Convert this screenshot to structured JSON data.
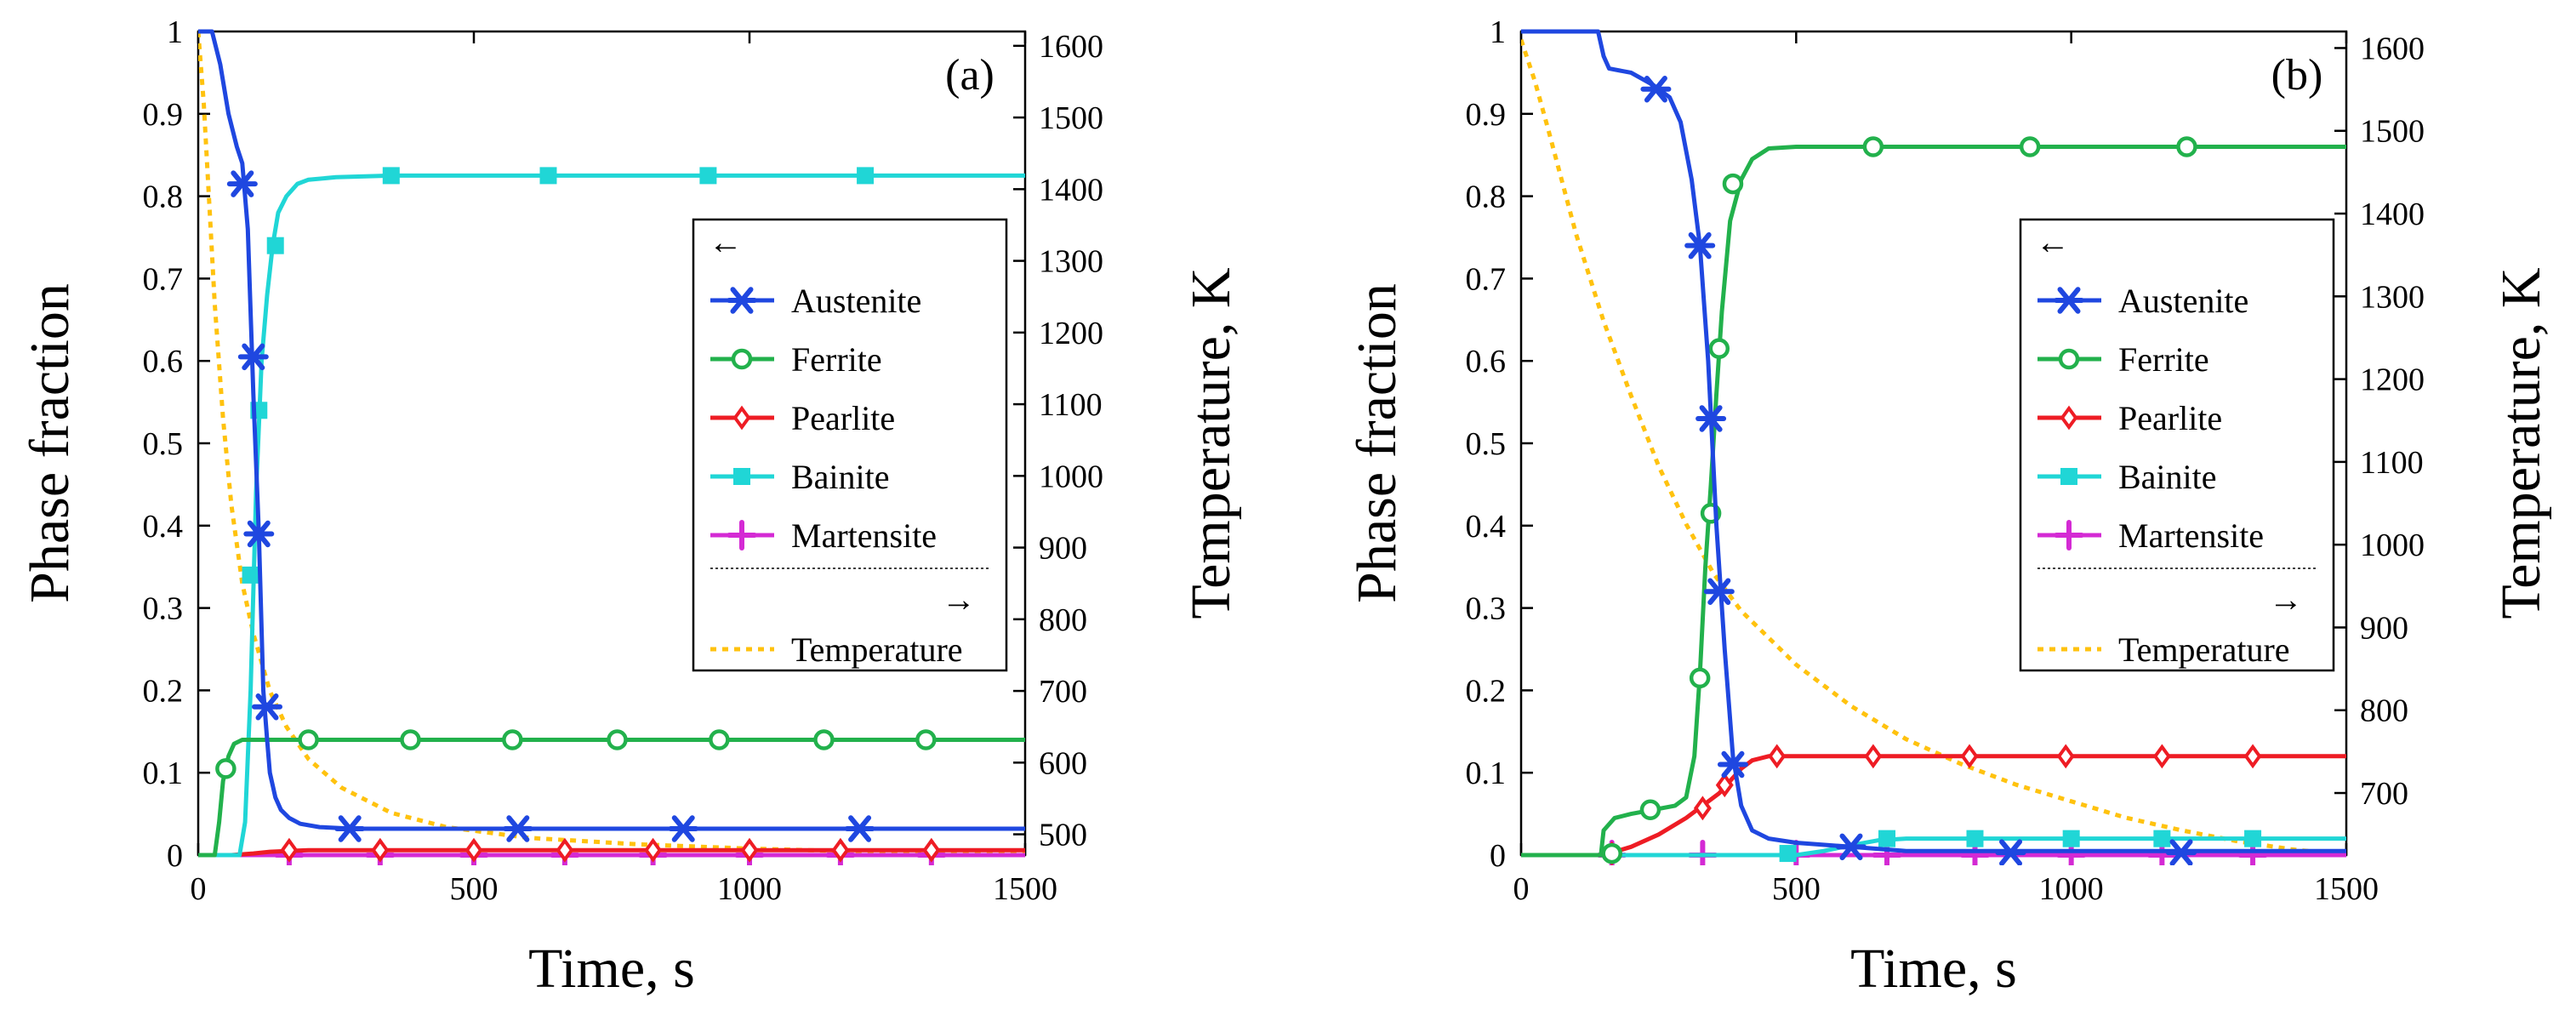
{
  "chart_data": [
    {
      "type": "line",
      "panel_label": "(a)",
      "xlabel": "Time, s",
      "ylabel": "Phase fraction",
      "y2label": "Temperature, K",
      "xlim": [
        0,
        1500
      ],
      "ylim": [
        0,
        1
      ],
      "y2lim": [
        471,
        1620
      ],
      "xticks": [
        0,
        500,
        1000,
        1500
      ],
      "yticks": [
        0,
        0.1,
        0.2,
        0.3,
        0.4,
        0.5,
        0.6,
        0.7,
        0.8,
        0.9,
        1
      ],
      "ytick_labels": [
        "0",
        "0.1",
        "0.2",
        "0.3",
        "0.4",
        "0.5",
        "0.6",
        "0.7",
        "0.8",
        "0.9",
        "1"
      ],
      "y2ticks": [
        500,
        600,
        700,
        800,
        900,
        1000,
        1100,
        1200,
        1300,
        1400,
        1500,
        1600
      ],
      "legend_left_arrow": "←",
      "legend_right_arrow": "→",
      "legend_location": "right",
      "series": [
        {
          "name": "Austenite",
          "color": "#1f47e0",
          "marker": "asterisk",
          "x": [
            0,
            25,
            40,
            55,
            70,
            80,
            90,
            100,
            110,
            118,
            125,
            130,
            140,
            150,
            165,
            185,
            220,
            280,
            400,
            1500
          ],
          "y": [
            1,
            1,
            0.96,
            0.9,
            0.86,
            0.84,
            0.76,
            0.56,
            0.39,
            0.2,
            0.14,
            0.1,
            0.07,
            0.055,
            0.045,
            0.038,
            0.034,
            0.032,
            0.032,
            0.032
          ],
          "marker_x": [
            80,
            100,
            110,
            125,
            275,
            580,
            880,
            1200
          ],
          "marker_y": [
            0.815,
            0.605,
            0.39,
            0.18,
            0.032,
            0.032,
            0.032,
            0.032
          ]
        },
        {
          "name": "Ferrite",
          "color": "#22b14c",
          "marker": "circle",
          "x": [
            0,
            30,
            38,
            45,
            55,
            65,
            80,
            100,
            1500
          ],
          "y": [
            0,
            0,
            0.04,
            0.09,
            0.12,
            0.135,
            0.14,
            0.14,
            0.14
          ],
          "marker_x": [
            50,
            200,
            385,
            570,
            760,
            945,
            1135,
            1320
          ],
          "marker_y": [
            0.105,
            0.14,
            0.14,
            0.14,
            0.14,
            0.14,
            0.14,
            0.14
          ]
        },
        {
          "name": "Pearlite",
          "color": "#ee1c24",
          "marker": "diamond",
          "x": [
            0,
            60,
            100,
            130,
            160,
            200,
            300,
            1500
          ],
          "y": [
            0,
            0,
            0.002,
            0.004,
            0.005,
            0.006,
            0.006,
            0.006
          ],
          "marker_x": [
            165,
            330,
            500,
            665,
            825,
            1000,
            1165,
            1330
          ],
          "marker_y": [
            0.006,
            0.006,
            0.006,
            0.006,
            0.006,
            0.006,
            0.006,
            0.006
          ]
        },
        {
          "name": "Bainite",
          "color": "#20d6d6",
          "marker": "square",
          "x": [
            0,
            75,
            85,
            95,
            105,
            115,
            125,
            135,
            145,
            160,
            180,
            200,
            250,
            350,
            1500
          ],
          "y": [
            0,
            0,
            0.04,
            0.2,
            0.44,
            0.6,
            0.68,
            0.74,
            0.78,
            0.8,
            0.815,
            0.82,
            0.823,
            0.825,
            0.825
          ],
          "marker_x": [
            95,
            110,
            140,
            350,
            635,
            925,
            1210
          ],
          "marker_y": [
            0.34,
            0.54,
            0.74,
            0.825,
            0.825,
            0.825,
            0.825
          ]
        },
        {
          "name": "Martensite",
          "color": "#d42ad4",
          "marker": "plus",
          "x": [
            0,
            1500
          ],
          "y": [
            0,
            0
          ],
          "marker_x": [
            165,
            330,
            500,
            665,
            825,
            1000,
            1165,
            1330
          ],
          "marker_y": [
            0,
            0,
            0,
            0,
            0,
            0,
            0,
            0
          ]
        },
        {
          "name": "Temperature",
          "color": "#ffc20e",
          "axis": "right",
          "style": "dotted",
          "x": [
            0,
            10,
            20,
            30,
            45,
            60,
            80,
            100,
            130,
            160,
            200,
            260,
            350,
            450,
            600,
            800,
            1000,
            1200,
            1500
          ],
          "y": [
            1620,
            1520,
            1380,
            1240,
            1080,
            960,
            850,
            780,
            700,
            650,
            605,
            565,
            530,
            510,
            495,
            486,
            480,
            476,
            473
          ]
        }
      ]
    },
    {
      "type": "line",
      "panel_label": "(b)",
      "xlabel": "Time, s",
      "ylabel": "Phase fraction",
      "y2label": "Temperature, K",
      "xlim": [
        0,
        1500
      ],
      "ylim": [
        0,
        1
      ],
      "y2lim": [
        625,
        1620
      ],
      "xticks": [
        0,
        500,
        1000,
        1500
      ],
      "yticks": [
        0,
        0.1,
        0.2,
        0.3,
        0.4,
        0.5,
        0.6,
        0.7,
        0.8,
        0.9,
        1
      ],
      "ytick_labels": [
        "0",
        "0.1",
        "0.2",
        "0.3",
        "0.4",
        "0.5",
        "0.6",
        "0.7",
        "0.8",
        "0.9",
        "1"
      ],
      "y2ticks": [
        700,
        800,
        900,
        1000,
        1100,
        1200,
        1300,
        1400,
        1500,
        1600
      ],
      "legend_left_arrow": "←",
      "legend_right_arrow": "→",
      "legend_location": "right",
      "series": [
        {
          "name": "Austenite",
          "color": "#1f47e0",
          "marker": "asterisk",
          "x": [
            0,
            140,
            150,
            160,
            200,
            240,
            270,
            290,
            310,
            325,
            340,
            355,
            370,
            385,
            400,
            420,
            450,
            500,
            600,
            700,
            1500
          ],
          "y": [
            1,
            1,
            0.97,
            0.955,
            0.95,
            0.935,
            0.92,
            0.89,
            0.82,
            0.74,
            0.6,
            0.4,
            0.25,
            0.12,
            0.06,
            0.03,
            0.02,
            0.015,
            0.01,
            0.005,
            0.005
          ],
          "marker_x": [
            245,
            325,
            345,
            360,
            385,
            600,
            890,
            1200
          ],
          "marker_y": [
            0.93,
            0.74,
            0.53,
            0.32,
            0.11,
            0.01,
            0.003,
            0.003
          ]
        },
        {
          "name": "Ferrite",
          "color": "#22b14c",
          "marker": "circle",
          "x": [
            0,
            145,
            150,
            170,
            200,
            240,
            280,
            300,
            315,
            325,
            335,
            345,
            355,
            365,
            380,
            400,
            420,
            450,
            500,
            1500
          ],
          "y": [
            0,
            0,
            0.03,
            0.045,
            0.05,
            0.055,
            0.06,
            0.07,
            0.12,
            0.22,
            0.35,
            0.45,
            0.56,
            0.66,
            0.77,
            0.82,
            0.845,
            0.858,
            0.86,
            0.86
          ],
          "marker_x": [
            165,
            235,
            325,
            345,
            360,
            385,
            640,
            925,
            1210
          ],
          "marker_y": [
            0.002,
            0.055,
            0.215,
            0.415,
            0.615,
            0.815,
            0.86,
            0.86,
            0.86
          ]
        },
        {
          "name": "Pearlite",
          "color": "#ee1c24",
          "marker": "diamond",
          "x": [
            0,
            150,
            200,
            250,
            300,
            330,
            360,
            380,
            400,
            420,
            450,
            500,
            1500
          ],
          "y": [
            0,
            0,
            0.01,
            0.025,
            0.045,
            0.06,
            0.075,
            0.09,
            0.105,
            0.115,
            0.12,
            0.12,
            0.12
          ],
          "marker_x": [
            165,
            330,
            370,
            465,
            640,
            815,
            990,
            1165,
            1330
          ],
          "marker_y": [
            0.002,
            0.057,
            0.085,
            0.12,
            0.12,
            0.12,
            0.12,
            0.12,
            0.12
          ]
        },
        {
          "name": "Bainite",
          "color": "#20d6d6",
          "marker": "square",
          "x": [
            0,
            500,
            550,
            600,
            650,
            700,
            1500
          ],
          "y": [
            0,
            0,
            0.005,
            0.012,
            0.018,
            0.02,
            0.02
          ],
          "marker_x": [
            485,
            665,
            825,
            1000,
            1165,
            1330
          ],
          "marker_y": [
            0.002,
            0.02,
            0.02,
            0.02,
            0.02,
            0.02
          ]
        },
        {
          "name": "Martensite",
          "color": "#d42ad4",
          "marker": "plus",
          "x": [
            0,
            1500
          ],
          "y": [
            0,
            0
          ],
          "marker_x": [
            165,
            330,
            500,
            665,
            825,
            1000,
            1165,
            1330
          ],
          "marker_y": [
            0,
            0,
            0,
            0,
            0,
            0,
            0,
            0
          ]
        },
        {
          "name": "Temperature",
          "color": "#ffc20e",
          "axis": "right",
          "style": "dotted",
          "x": [
            0,
            25,
            50,
            100,
            150,
            200,
            250,
            300,
            350,
            400,
            500,
            600,
            700,
            800,
            900,
            1000,
            1100,
            1200,
            1300,
            1400,
            1500
          ],
          "y": [
            1610,
            1560,
            1500,
            1375,
            1270,
            1180,
            1095,
            1025,
            965,
            920,
            855,
            805,
            765,
            735,
            710,
            690,
            670,
            655,
            642,
            632,
            625
          ]
        }
      ]
    }
  ]
}
